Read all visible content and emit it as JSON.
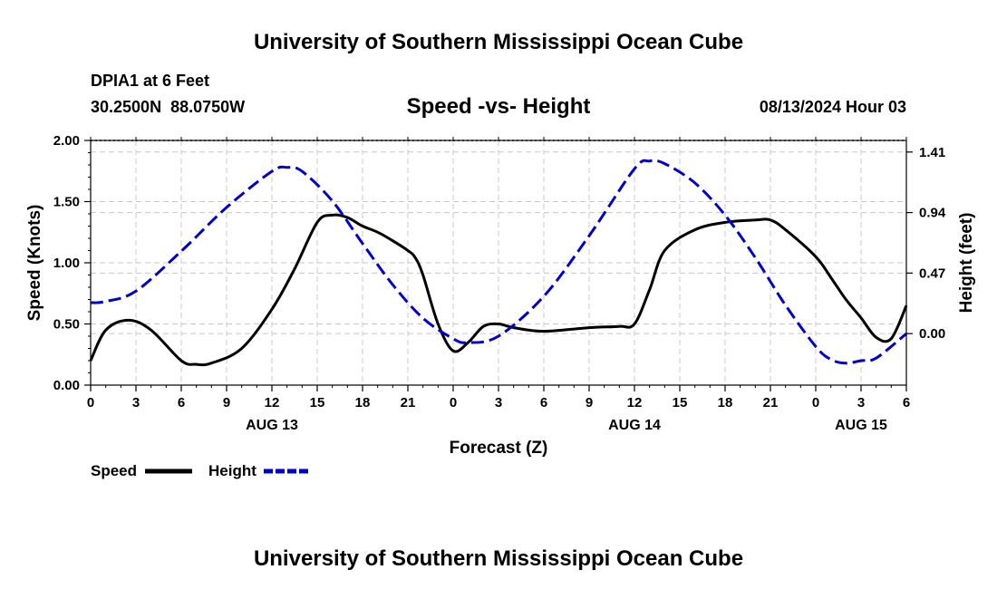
{
  "header": {
    "title": "University of Southern Mississippi Ocean Cube",
    "station": "DPIA1 at 6 Feet",
    "coords": "30.2500N  88.0750W",
    "subtitle": "Speed -vs- Height",
    "datetime": "08/13/2024 Hour 03"
  },
  "footer": {
    "title": "University of Southern Mississippi Ocean Cube"
  },
  "chart_data": {
    "type": "line",
    "title": "Speed -vs- Height",
    "xlabel": "Forecast (Z)",
    "ylabel": "Speed (Knots)",
    "y2label": "Height (feet)",
    "xlim": [
      0,
      54
    ],
    "ylim": [
      0,
      2.0
    ],
    "y2lim": [
      -0.4,
      1.5
    ],
    "x_ticks": [
      0,
      3,
      6,
      9,
      12,
      15,
      18,
      21,
      24,
      27,
      30,
      33,
      36,
      39,
      42,
      45,
      48,
      51,
      54
    ],
    "x_tick_labels": [
      "0",
      "3",
      "6",
      "9",
      "12",
      "15",
      "18",
      "21",
      "0",
      "3",
      "6",
      "9",
      "12",
      "15",
      "18",
      "21",
      "0",
      "3",
      "6"
    ],
    "date_labels": [
      {
        "x": 12,
        "label": "AUG 13"
      },
      {
        "x": 36,
        "label": "AUG 14"
      },
      {
        "x": 51,
        "label": "AUG 15"
      }
    ],
    "y_ticks": [
      0.0,
      0.5,
      1.0,
      1.5,
      2.0
    ],
    "y_tick_labels": [
      "0.00",
      "0.50",
      "1.00",
      "1.50",
      "2.00"
    ],
    "y2_ticks": [
      0.0,
      0.47,
      0.94,
      1.41
    ],
    "y2_tick_labels": [
      "0.00",
      "0.47",
      "0.94",
      "1.41"
    ],
    "grid": true,
    "series": [
      {
        "name": "Speed",
        "axis": "left",
        "color": "#000000",
        "dash": "solid",
        "x": [
          0,
          1,
          2.5,
          4,
          6,
          7,
          8,
          10,
          12,
          13.5,
          15,
          16,
          17,
          18,
          19,
          20,
          21,
          21.5,
          22,
          23,
          24,
          25,
          26,
          27,
          28,
          30,
          33,
          35,
          36,
          37,
          38,
          40,
          42,
          44,
          45,
          46,
          48,
          49,
          50,
          51,
          52,
          53,
          54
        ],
        "values": [
          0.2,
          0.45,
          0.53,
          0.45,
          0.2,
          0.17,
          0.18,
          0.3,
          0.62,
          0.95,
          1.33,
          1.39,
          1.37,
          1.3,
          1.25,
          1.18,
          1.1,
          1.04,
          0.9,
          0.5,
          0.28,
          0.35,
          0.48,
          0.5,
          0.47,
          0.44,
          0.47,
          0.48,
          0.5,
          0.78,
          1.1,
          1.27,
          1.33,
          1.35,
          1.35,
          1.27,
          1.05,
          0.88,
          0.7,
          0.55,
          0.39,
          0.38,
          0.65
        ]
      },
      {
        "name": "Height",
        "axis": "right",
        "color": "#0000cc",
        "dash": "dashed",
        "x": [
          0,
          1,
          3,
          6,
          9,
          12,
          13,
          14,
          16,
          18,
          20,
          22,
          24,
          25,
          27,
          30,
          33,
          36,
          37,
          38,
          40,
          42,
          44,
          46,
          48,
          49,
          50,
          51,
          52,
          54
        ],
        "values": [
          0.24,
          0.25,
          0.33,
          0.64,
          0.98,
          1.26,
          1.29,
          1.26,
          1.03,
          0.7,
          0.38,
          0.12,
          -0.04,
          -0.07,
          -0.02,
          0.29,
          0.76,
          1.28,
          1.34,
          1.32,
          1.17,
          0.92,
          0.59,
          0.22,
          -0.1,
          -0.2,
          -0.23,
          -0.21,
          -0.19,
          0.0
        ]
      }
    ],
    "legend": [
      {
        "label": "Speed",
        "color": "#000000",
        "dash": "solid"
      },
      {
        "label": "Height",
        "color": "#0000cc",
        "dash": "dashed"
      }
    ]
  }
}
